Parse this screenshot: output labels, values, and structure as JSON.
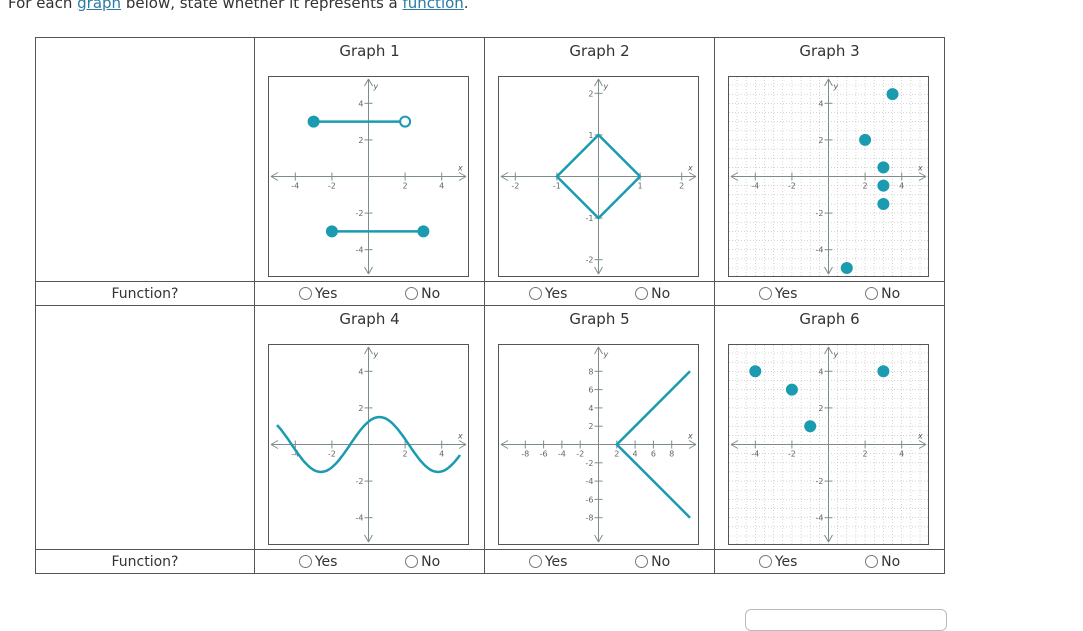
{
  "instruction": {
    "prefix": "For each ",
    "link1": "graph",
    "middle": " below, state whether it represents a ",
    "link2": "function",
    "suffix": "."
  },
  "row_label": "Function?",
  "yes_label": "Yes",
  "no_label": "No",
  "graphs": [
    {
      "title": "Graph 1"
    },
    {
      "title": "Graph 2"
    },
    {
      "title": "Graph 3"
    },
    {
      "title": "Graph 4"
    },
    {
      "title": "Graph 5"
    },
    {
      "title": "Graph 6"
    }
  ],
  "colors": {
    "curve": "#1a9bb0",
    "axis": "#7f8c8d",
    "grid": "#bbbbbb"
  },
  "plots": {
    "g1": {
      "xlim": [
        -5,
        5
      ],
      "ylim": [
        -5,
        5
      ],
      "xticks": [
        "-4",
        "-2",
        "2",
        "4"
      ],
      "yticks": [
        "4",
        "2",
        "-2",
        "-4"
      ],
      "segments": [
        {
          "from": [
            -3,
            3
          ],
          "to": [
            2,
            3
          ],
          "start": "closed",
          "end": "open"
        },
        {
          "from": [
            -2,
            -3
          ],
          "to": [
            3,
            -3
          ],
          "start": "closed",
          "end": "closed"
        }
      ]
    },
    "g2": {
      "xlim": [
        -2.2,
        2.2
      ],
      "ylim": [
        -2.2,
        2.2
      ],
      "xticks": [
        "-2",
        "-1",
        "1",
        "2"
      ],
      "yticks": [
        "2",
        "1",
        "-1",
        "-2"
      ],
      "polygon": [
        [
          0,
          1
        ],
        [
          1,
          0
        ],
        [
          0,
          -1
        ],
        [
          -1,
          0
        ]
      ]
    },
    "g3": {
      "xlim": [
        -5,
        5
      ],
      "ylim": [
        -5,
        5
      ],
      "xticks": [
        "-4",
        "-2",
        "2",
        "4"
      ],
      "yticks": [
        "4",
        "2",
        "-2",
        "-4"
      ],
      "points": [
        [
          3.5,
          4.5
        ],
        [
          2,
          2
        ],
        [
          3,
          0.5
        ],
        [
          3,
          -0.5
        ],
        [
          3,
          -1.5
        ],
        [
          1,
          -5
        ]
      ]
    },
    "g4": {
      "xlim": [
        -5,
        5
      ],
      "ylim": [
        -5,
        5
      ],
      "xticks": [
        "-4",
        "-2",
        "2",
        "4"
      ],
      "yticks": [
        "4",
        "2",
        "-2",
        "-4"
      ],
      "curve": "sine"
    },
    "g5": {
      "xlim": [
        -10,
        10
      ],
      "ylim": [
        -10,
        10
      ],
      "xticks": [
        "-8",
        "-6",
        "-4",
        "-2",
        "2",
        "4",
        "6",
        "8"
      ],
      "yticks": [
        "8",
        "6",
        "4",
        "2",
        "-2",
        "-4",
        "-6",
        "-8"
      ],
      "vertex": [
        2,
        0
      ]
    },
    "g6": {
      "xlim": [
        -5,
        5
      ],
      "ylim": [
        -5,
        5
      ],
      "xticks": [
        "-4",
        "-2",
        "2",
        "4"
      ],
      "yticks": [
        "4",
        "2",
        "-2",
        "-4"
      ],
      "points": [
        [
          -4,
          4
        ],
        [
          -2,
          3
        ],
        [
          -1,
          1
        ],
        [
          3,
          4
        ]
      ]
    }
  }
}
